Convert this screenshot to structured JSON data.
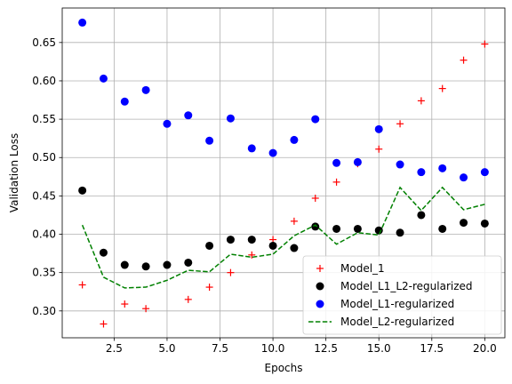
{
  "chart_data": {
    "type": "scatter",
    "xlabel": "Epochs",
    "ylabel": "Validation Loss",
    "xlim": [
      0.05,
      20.95
    ],
    "ylim": [
      0.265,
      0.695
    ],
    "xticks": [
      2.5,
      5.0,
      7.5,
      10.0,
      12.5,
      15.0,
      17.5,
      20.0
    ],
    "xtick_labels": [
      "2.5",
      "5.0",
      "7.5",
      "10.0",
      "12.5",
      "15.0",
      "17.5",
      "20.0"
    ],
    "yticks": [
      0.3,
      0.35,
      0.4,
      0.45,
      0.5,
      0.55,
      0.6,
      0.65
    ],
    "ytick_labels": [
      "0.30",
      "0.35",
      "0.40",
      "0.45",
      "0.50",
      "0.55",
      "0.60",
      "0.65"
    ],
    "grid": true,
    "legend_position": "lower-right",
    "x": [
      1,
      2,
      3,
      4,
      5,
      6,
      7,
      8,
      9,
      10,
      11,
      12,
      13,
      14,
      15,
      16,
      17,
      18,
      19,
      20
    ],
    "series": [
      {
        "name": "Model_1",
        "style": "plus",
        "color": "#ff0000",
        "values": [
          0.334,
          0.283,
          0.309,
          0.303,
          0.36,
          0.315,
          0.331,
          0.35,
          0.373,
          0.393,
          0.417,
          0.447,
          0.468,
          0.492,
          0.511,
          0.544,
          0.574,
          0.59,
          0.627,
          0.648
        ]
      },
      {
        "name": "Model_L1_L2-regularized",
        "style": "dot",
        "color": "#000000",
        "values": [
          0.457,
          0.376,
          0.36,
          0.358,
          0.36,
          0.363,
          0.385,
          0.393,
          0.393,
          0.385,
          0.382,
          0.41,
          0.407,
          0.407,
          0.405,
          0.402,
          0.425,
          0.407,
          0.415,
          0.414
        ]
      },
      {
        "name": "Model_L1-regularized",
        "style": "dot",
        "color": "#0000ff",
        "values": [
          0.676,
          0.603,
          0.573,
          0.588,
          0.544,
          0.555,
          0.522,
          0.551,
          0.512,
          0.506,
          0.523,
          0.55,
          0.493,
          0.494,
          0.537,
          0.491,
          0.481,
          0.486,
          0.474,
          0.481
        ]
      },
      {
        "name": "Model_L2-regularized",
        "style": "dashed-line",
        "color": "#008000",
        "values": [
          0.412,
          0.344,
          0.33,
          0.331,
          0.34,
          0.353,
          0.351,
          0.374,
          0.37,
          0.374,
          0.398,
          0.412,
          0.387,
          0.402,
          0.399,
          0.461,
          0.431,
          0.461,
          0.432,
          0.439
        ]
      }
    ]
  }
}
